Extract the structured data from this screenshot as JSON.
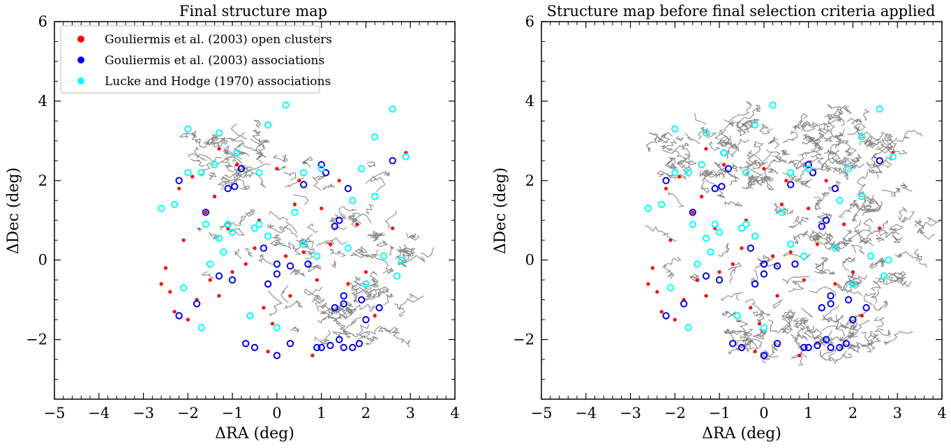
{
  "chart_data": [
    {
      "type": "scatter",
      "title": "Final structure map",
      "xlabel": "ΔRA (deg)",
      "ylabel": "ΔDec (deg)",
      "xlim": [
        -5,
        4
      ],
      "ylim": [
        -3.5,
        6
      ],
      "xticks": [
        "−5",
        "−4",
        "−3",
        "−2",
        "−1",
        "0",
        "1",
        "2",
        "3",
        "4"
      ],
      "yticks": [
        "−2",
        "0",
        "2",
        "4",
        "6"
      ],
      "grid": false,
      "legend_position": "top-left",
      "contour_color": "#888888",
      "contour_regions": [
        {
          "x": 0.5,
          "y": 0.6,
          "rx": 2.4,
          "ry": 2.7
        },
        {
          "x": 1.7,
          "y": 0.3,
          "rx": 1.6,
          "ry": 1.0
        },
        {
          "x": -0.9,
          "y": 2.6,
          "rx": 1.3,
          "ry": 0.9
        },
        {
          "x": 1.9,
          "y": -1.3,
          "rx": 1.1,
          "ry": 0.7
        }
      ],
      "series": [
        {
          "name": "Gouliermis et al. (2003) open clusters",
          "color": "#ff0000",
          "marker": "filled-circle",
          "points": [
            [
              -2.5,
              -0.2
            ],
            [
              -2.4,
              -0.8
            ],
            [
              -2.3,
              -1.3
            ],
            [
              -2.1,
              0.5
            ],
            [
              -1.8,
              -1.0
            ],
            [
              -1.5,
              -0.5
            ],
            [
              -1.3,
              -0.9
            ],
            [
              -1.0,
              -0.3
            ],
            [
              -0.7,
              -0.1
            ],
            [
              -0.5,
              0.3
            ],
            [
              0.2,
              0.1
            ],
            [
              0.6,
              0.2
            ],
            [
              0.9,
              -0.5
            ],
            [
              1.2,
              0.4
            ],
            [
              -2.2,
              1.8
            ],
            [
              -1.9,
              2.1
            ],
            [
              -1.4,
              1.6
            ],
            [
              -0.9,
              2.4
            ],
            [
              0.4,
              1.4
            ],
            [
              1.0,
              1.3
            ],
            [
              1.6,
              -0.6
            ],
            [
              2.2,
              -1.4
            ],
            [
              -0.3,
              -1.2
            ],
            [
              0.8,
              -2.4
            ],
            [
              -0.2,
              -2.3
            ],
            [
              2.9,
              2.7
            ],
            [
              1.4,
              2.0
            ],
            [
              -0.1,
              -1.6
            ],
            [
              -2.0,
              -1.5
            ],
            [
              2.6,
              0.8
            ],
            [
              -1.1,
              0.8
            ],
            [
              0.3,
              -0.9
            ],
            [
              -2.6,
              -0.6
            ],
            [
              -1.6,
              1.2
            ],
            [
              1.8,
              0.9
            ],
            [
              0.0,
              2.3
            ],
            [
              -0.4,
              1.0
            ],
            [
              2.0,
              -0.3
            ],
            [
              -1.3,
              2.8
            ],
            [
              0.5,
              2.0
            ]
          ]
        },
        {
          "name": "Gouliermis et al. (2003) associations",
          "color": "#0000ee",
          "marker": "filled-circle",
          "points": [
            [
              -0.2,
              -0.6
            ],
            [
              0.0,
              -0.1
            ],
            [
              0.0,
              -0.35
            ],
            [
              1.5,
              -0.9
            ],
            [
              1.5,
              -1.1
            ],
            [
              1.3,
              -1.2
            ],
            [
              2.3,
              -1.2
            ],
            [
              2.0,
              -1.5
            ],
            [
              1.0,
              -2.2
            ],
            [
              1.2,
              -2.15
            ],
            [
              1.5,
              -2.2
            ],
            [
              1.7,
              -2.2
            ],
            [
              1.85,
              -2.1
            ],
            [
              0.9,
              -2.2
            ],
            [
              1.4,
              -2.0
            ],
            [
              0.3,
              -2.1
            ],
            [
              -0.5,
              -2.2
            ],
            [
              -0.7,
              -2.1
            ],
            [
              -1.8,
              -1.1
            ],
            [
              -2.2,
              -1.4
            ],
            [
              -1.0,
              -0.5
            ],
            [
              1.4,
              1.0
            ],
            [
              1.3,
              0.85
            ],
            [
              1.0,
              2.4
            ],
            [
              1.1,
              2.2
            ],
            [
              -0.9,
              2.7
            ],
            [
              -0.8,
              2.3
            ],
            [
              -1.1,
              1.8
            ],
            [
              -0.95,
              1.85
            ],
            [
              -2.2,
              2.0
            ],
            [
              -1.6,
              1.2
            ],
            [
              1.6,
              1.8
            ],
            [
              0.6,
              1.9
            ],
            [
              0.3,
              -0.15
            ],
            [
              -0.3,
              0.3
            ],
            [
              0.7,
              -0.1
            ],
            [
              2.6,
              2.5
            ],
            [
              -1.3,
              -0.4
            ],
            [
              0.0,
              -2.4
            ],
            [
              1.9,
              -1.0
            ]
          ]
        },
        {
          "name": "Lucke and Hodge (1970) associations",
          "color": "#00ffff",
          "marker": "filled-circle",
          "points": [
            [
              -0.9,
              2.7
            ],
            [
              2.6,
              3.8
            ],
            [
              0.2,
              3.9
            ],
            [
              -0.2,
              3.4
            ],
            [
              -2.0,
              3.3
            ],
            [
              -1.3,
              3.2
            ],
            [
              2.2,
              3.1
            ],
            [
              -1.2,
              0.2
            ],
            [
              -1.5,
              -0.1
            ],
            [
              2.4,
              0.1
            ],
            [
              -1.3,
              0.55
            ],
            [
              -1.0,
              0.7
            ],
            [
              -2.6,
              1.3
            ],
            [
              -2.3,
              1.4
            ],
            [
              -0.5,
              0.8
            ],
            [
              -0.4,
              0.9
            ],
            [
              0.6,
              0.4
            ],
            [
              1.6,
              0.3
            ],
            [
              1.9,
              2.3
            ],
            [
              1.0,
              2.3
            ],
            [
              0.6,
              2.2
            ],
            [
              -0.4,
              2.2
            ],
            [
              -1.7,
              2.2
            ],
            [
              -1.4,
              2.4
            ],
            [
              -2.0,
              2.2
            ],
            [
              2.9,
              2.6
            ],
            [
              -2.1,
              -0.7
            ],
            [
              -1.7,
              -1.7
            ],
            [
              0.0,
              -1.7
            ],
            [
              -0.6,
              -1.4
            ],
            [
              2.0,
              -0.6
            ],
            [
              2.8,
              0.0
            ],
            [
              -1.1,
              0.9
            ],
            [
              0.9,
              0.1
            ],
            [
              2.2,
              1.6
            ],
            [
              -1.6,
              0.9
            ],
            [
              1.7,
              1.5
            ],
            [
              -0.2,
              0.6
            ],
            [
              2.7,
              -0.4
            ],
            [
              0.4,
              1.2
            ]
          ]
        }
      ]
    },
    {
      "type": "scatter",
      "title": "Structure map before final selection criteria applied",
      "xlabel": "ΔRA (deg)",
      "ylabel": "ΔDec (deg)",
      "xlim": [
        -5,
        4
      ],
      "ylim": [
        -3.5,
        6
      ],
      "xticks": [
        "−5",
        "−4",
        "−3",
        "−2",
        "−1",
        "0",
        "1",
        "2",
        "3",
        "4"
      ],
      "yticks": [
        "−2",
        "0",
        "2",
        "4",
        "6"
      ],
      "grid": false,
      "legend_position": "none",
      "contour_color": "#888888",
      "contour_regions": [
        {
          "x": 0.5,
          "y": 0.7,
          "rx": 3.1,
          "ry": 3.2
        },
        {
          "x": 2.2,
          "y": 0.5,
          "rx": 1.6,
          "ry": 1.4
        },
        {
          "x": -1.0,
          "y": 2.6,
          "rx": 1.6,
          "ry": 1.1
        },
        {
          "x": 1.8,
          "y": 3.0,
          "rx": 1.2,
          "ry": 0.9
        },
        {
          "x": 1.0,
          "y": -1.9,
          "rx": 1.8,
          "ry": 0.6
        }
      ],
      "series": [
        {
          "name": "Gouliermis et al. (2003) open clusters",
          "color": "#ff0000",
          "marker": "filled-circle",
          "same_as_panel": 0
        },
        {
          "name": "Gouliermis et al. (2003) associations",
          "color": "#0000ee",
          "marker": "filled-circle",
          "same_as_panel": 0
        },
        {
          "name": "Lucke and Hodge (1970) associations",
          "color": "#00ffff",
          "marker": "filled-circle",
          "same_as_panel": 0
        }
      ]
    }
  ]
}
